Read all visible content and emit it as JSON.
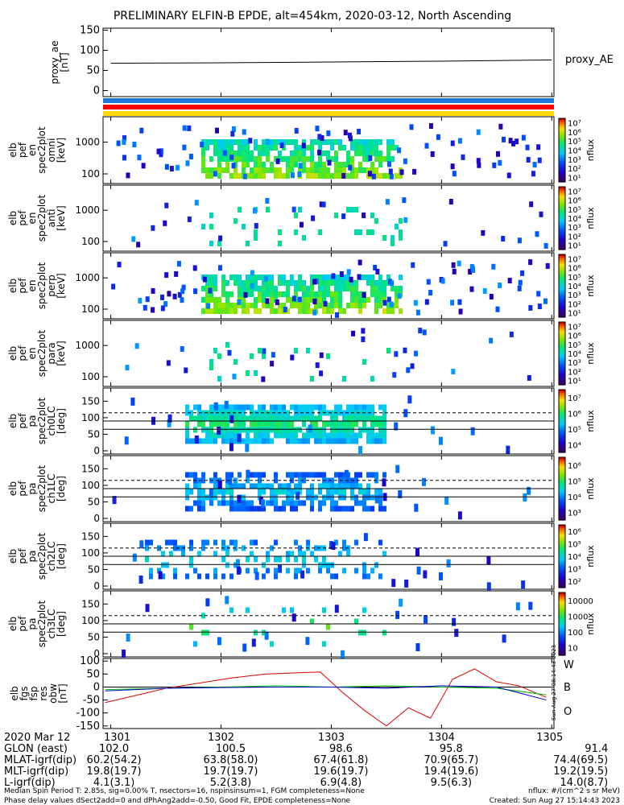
{
  "title": "PRELIMINARY ELFIN-B EPDE, alt=454km, 2020-03-12, North Ascending",
  "colors": {
    "axis": "#000000",
    "bar_blue": "#1e78d7",
    "bar_red": "#ff0000",
    "bar_yellow": "#ffd700",
    "W": "#e00000",
    "B": "#00c000",
    "O": "#0000d0"
  },
  "chart_data": [
    {
      "type": "line",
      "id": "proxy_ae",
      "ylabel": [
        "proxy_ae",
        "[nT]"
      ],
      "right_label": "proxy_AE",
      "ylim": [
        -15,
        155
      ],
      "yticks": [
        "150",
        "100",
        "50",
        "0"
      ],
      "ytick_values": [
        150,
        100,
        50,
        0
      ],
      "x": [
        1301,
        1302,
        1303,
        1304,
        1305
      ],
      "values": [
        68,
        69,
        71,
        73,
        76
      ]
    },
    {
      "type": "heatmap",
      "id": "pef_en_omni",
      "ylabel": [
        "elb",
        "pef",
        "en",
        "spec2plot",
        "omni",
        "[keV]"
      ],
      "yticks": [
        "1000",
        "100"
      ],
      "cbar_label": "nflux",
      "cbar_ticks": [
        "10⁷",
        "10⁶",
        "10⁵",
        "10⁴",
        "10³",
        "10²",
        "10¹"
      ],
      "density": "high"
    },
    {
      "type": "heatmap",
      "id": "pef_en_anti",
      "ylabel": [
        "elb",
        "pef",
        "en",
        "spec2plot",
        "anti",
        "[keV]"
      ],
      "yticks": [
        "1000",
        "100"
      ],
      "cbar_label": "nflux",
      "cbar_ticks": [
        "10⁷",
        "10⁶",
        "10⁵",
        "10⁴",
        "10³",
        "10²",
        "10¹"
      ],
      "density": "low"
    },
    {
      "type": "heatmap",
      "id": "pef_en_perp",
      "ylabel": [
        "elb",
        "pef",
        "en",
        "spec2plot",
        "perp",
        "[keV]"
      ],
      "yticks": [
        "1000",
        "100"
      ],
      "cbar_label": "nflux",
      "cbar_ticks": [
        "10⁷",
        "10⁶",
        "10⁵",
        "10⁴",
        "10³",
        "10²",
        "10¹"
      ],
      "density": "high"
    },
    {
      "type": "heatmap",
      "id": "pef_en_para",
      "ylabel": [
        "elb",
        "pef",
        "en",
        "spec2plot",
        "para",
        "[keV]"
      ],
      "yticks": [
        "1000",
        "100"
      ],
      "cbar_label": "nflux",
      "cbar_ticks": [
        "10⁷",
        "10⁶",
        "10⁵",
        "10⁴",
        "10³",
        "10²",
        "10¹"
      ],
      "density": "low"
    },
    {
      "type": "heatmap",
      "id": "pef_pa_ch0",
      "ylabel": [
        "elb",
        "pef",
        "pa",
        "spec2plot",
        "ch0LC",
        "[deg]"
      ],
      "yticks": [
        "150",
        "100",
        "50",
        "0"
      ],
      "cbar_label": "nflux",
      "cbar_ticks": [
        "10⁷",
        "10⁶",
        "10⁵",
        "10⁴"
      ],
      "density": "pa_high"
    },
    {
      "type": "heatmap",
      "id": "pef_pa_ch1",
      "ylabel": [
        "elb",
        "pef",
        "pa",
        "spec2plot",
        "ch1LC",
        "[deg]"
      ],
      "yticks": [
        "150",
        "100",
        "50",
        "0"
      ],
      "cbar_label": "nflux",
      "cbar_ticks": [
        "10⁶",
        "10⁵",
        "10⁴",
        "10³"
      ],
      "density": "pa_mid"
    },
    {
      "type": "heatmap",
      "id": "pef_pa_ch2",
      "ylabel": [
        "elb",
        "pef",
        "pa",
        "spec2plot",
        "ch2LC",
        "[deg]"
      ],
      "yticks": [
        "150",
        "100",
        "50",
        "0"
      ],
      "cbar_label": "nflux",
      "cbar_ticks": [
        "10⁶",
        "10⁵",
        "10⁴",
        "10³",
        "10²"
      ],
      "density": "pa_low"
    },
    {
      "type": "heatmap",
      "id": "pef_pa_ch3",
      "ylabel": [
        "elb",
        "pef",
        "pa",
        "spec2plot",
        "ch3LC",
        "[deg]"
      ],
      "yticks": [
        "150",
        "100",
        "50",
        "0"
      ],
      "cbar_label": "nflux",
      "cbar_ticks": [
        "10000",
        "1000",
        "100",
        "10"
      ],
      "density": "pa_sparse"
    },
    {
      "type": "line",
      "id": "fgs_res",
      "ylabel": [
        "elb",
        "fgs",
        "fsp",
        "res",
        "obw",
        "[nT]"
      ],
      "ylim": [
        -160,
        110
      ],
      "yticks": [
        "100",
        "50",
        "0",
        "-50",
        "-100",
        "-150"
      ],
      "ytick_values": [
        100,
        50,
        0,
        -50,
        -100,
        -150
      ],
      "series": [
        {
          "name": "W",
          "x": [
            1300.95,
            1301.2,
            1301.5,
            1301.8,
            1302.1,
            1302.4,
            1302.7,
            1302.9,
            1303.1,
            1303.3,
            1303.5,
            1303.7,
            1303.9,
            1304.1,
            1304.3,
            1304.5,
            1304.7,
            1304.95
          ],
          "values": [
            -60,
            -35,
            -5,
            15,
            35,
            50,
            55,
            58,
            -20,
            -90,
            -150,
            -80,
            -120,
            30,
            70,
            20,
            5,
            -40
          ]
        },
        {
          "name": "B",
          "x": [
            1300.95,
            1301.5,
            1302.0,
            1302.5,
            1303.0,
            1303.5,
            1304.0,
            1304.5,
            1304.95
          ],
          "values": [
            -10,
            -5,
            0,
            5,
            0,
            5,
            0,
            -5,
            -30
          ]
        },
        {
          "name": "O",
          "x": [
            1300.95,
            1301.5,
            1302.0,
            1302.5,
            1303.0,
            1303.5,
            1304.0,
            1304.5,
            1304.95
          ],
          "values": [
            -15,
            -5,
            -2,
            0,
            0,
            -5,
            5,
            0,
            -50
          ]
        }
      ],
      "side_labels": [
        "W",
        "B",
        "O"
      ],
      "vertical_stamp": "Sun Aug 27 08:14:43 2023"
    }
  ],
  "xaxis": {
    "date": "2020 Mar 12",
    "tick_labels": [
      "1301",
      "1302",
      "1303",
      "1304",
      "1305"
    ],
    "rows": [
      {
        "label": "GLON (east)",
        "values": [
          "102.0",
          "100.5",
          "98.6",
          "95.8",
          "91.4"
        ]
      },
      {
        "label": "MLAT-igrf(dip)",
        "values": [
          "60.2(54.2)",
          "63.8(58.0)",
          "67.4(61.8)",
          "70.9(65.7)",
          "74.4(69.5)"
        ]
      },
      {
        "label": "MLT-igrf(dip)",
        "values": [
          "19.8(19.7)",
          "19.7(19.7)",
          "19.6(19.7)",
          "19.4(19.6)",
          "19.2(19.5)"
        ]
      },
      {
        "label": "L-igrf(dip)",
        "values": [
          "4.1(3.1)",
          "5.2(3.8)",
          "6.9(4.8)",
          "9.5(6.3)",
          "14.0(8.7)"
        ]
      }
    ]
  },
  "footer": {
    "line1": "Median Spin Period T: 2.85s, sig=0.00% T, nsectors=16, nspinsinsum=1, FGM completeness=None",
    "line2": "Phase delay values dSect2add=0 and dPhAng2add=-0.50, Good Fit, EPDE completeness=None",
    "right1": "nflux: #/(cm^2 s sr MeV)",
    "right2": "Created: Sun Aug 27 15:14:43 2023"
  }
}
